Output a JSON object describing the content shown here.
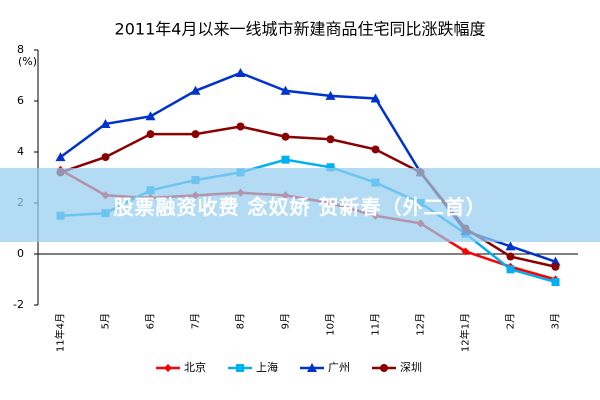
{
  "chart_data": {
    "type": "line",
    "title": "2011年4月以来一线城市新建商品住宅同比涨跌幅度",
    "y_unit": "(%)",
    "categories": [
      "11年4月",
      "5月",
      "6月",
      "7月",
      "8月",
      "9月",
      "10月",
      "11月",
      "12月",
      "12年1月",
      "2月",
      "3月"
    ],
    "series": [
      {
        "name": "北京",
        "color": "#ff0000",
        "marker": "diamond",
        "values": [
          3.3,
          2.3,
          2.2,
          2.3,
          2.4,
          2.3,
          2.0,
          1.5,
          1.2,
          0.1,
          -0.5,
          -1.0
        ]
      },
      {
        "name": "上海",
        "color": "#00b0f0",
        "marker": "square",
        "values": [
          1.5,
          1.6,
          2.5,
          2.9,
          3.2,
          3.7,
          3.4,
          2.8,
          2.0,
          0.8,
          -0.6,
          -1.1
        ]
      },
      {
        "name": "广州",
        "color": "#0033cc",
        "marker": "triangle",
        "values": [
          3.8,
          5.1,
          5.4,
          6.4,
          7.1,
          6.4,
          6.2,
          6.1,
          3.2,
          0.9,
          0.3,
          -0.3
        ]
      },
      {
        "name": "深圳",
        "color": "#8b0000",
        "marker": "circle",
        "values": [
          3.2,
          3.8,
          4.7,
          4.7,
          5.0,
          4.6,
          4.5,
          4.1,
          3.2,
          1.0,
          -0.1,
          -0.5
        ]
      }
    ],
    "ylim": [
      -2,
      8
    ],
    "yticks": [
      -2,
      0,
      2,
      4,
      6,
      8
    ],
    "grid": false,
    "legend": "bottom"
  },
  "banner": "股票融资收费 念奴娇 贺新春（外二首）"
}
